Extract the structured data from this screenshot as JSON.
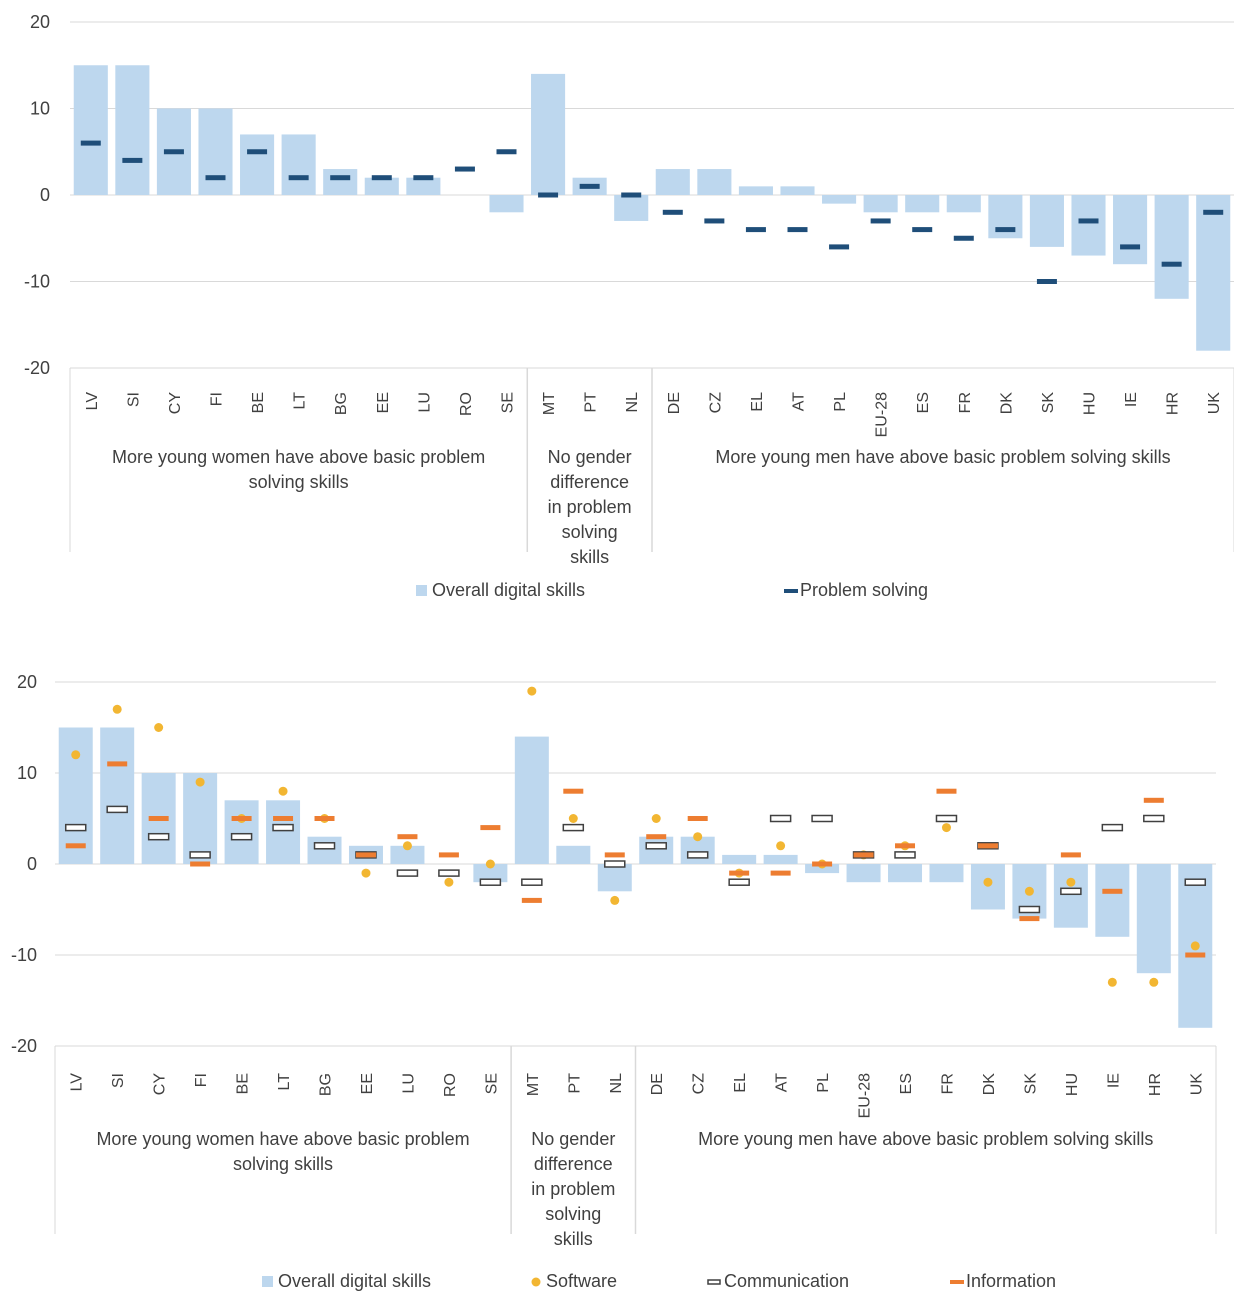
{
  "chart_data": [
    {
      "type": "bar",
      "categories": [
        "LV",
        "SI",
        "CY",
        "FI",
        "BE",
        "LT",
        "BG",
        "EE",
        "LU",
        "RO",
        "SE",
        "MT",
        "PT",
        "NL",
        "DE",
        "CZ",
        "EL",
        "AT",
        "PL",
        "EU-28",
        "ES",
        "FR",
        "DK",
        "SK",
        "HU",
        "IE",
        "HR",
        "UK"
      ],
      "series": [
        {
          "name": "Overall digital skills",
          "kind": "bar",
          "values": [
            15,
            15,
            10,
            10,
            7,
            7,
            3,
            2,
            2,
            0,
            -2,
            14,
            2,
            -3,
            3,
            3,
            1,
            1,
            -1,
            -2,
            -2,
            -2,
            -5,
            -6,
            -7,
            -8,
            -12,
            -18
          ]
        },
        {
          "name": "Problem solving",
          "kind": "dash",
          "values": [
            6,
            4,
            5,
            2,
            5,
            2,
            2,
            2,
            2,
            3,
            5,
            0,
            1,
            0,
            -2,
            -3,
            -4,
            -4,
            -6,
            -3,
            -4,
            -5,
            -4,
            -10,
            -3,
            -6,
            -8,
            -2
          ]
        }
      ],
      "ylim": [
        -20,
        20
      ],
      "yticks": [
        "20",
        "10",
        "0",
        "-10",
        "-20"
      ],
      "groups": [
        {
          "label": "More young women have above basic problem solving skills",
          "count": 11
        },
        {
          "label": "No gender difference in problem solving skills",
          "count": 3
        },
        {
          "label": "More young men have above basic problem solving skills",
          "count": 14
        }
      ],
      "grid": true,
      "legend": "bottom"
    },
    {
      "type": "bar",
      "categories": [
        "LV",
        "SI",
        "CY",
        "FI",
        "BE",
        "LT",
        "BG",
        "EE",
        "LU",
        "RO",
        "SE",
        "MT",
        "PT",
        "NL",
        "DE",
        "CZ",
        "EL",
        "AT",
        "PL",
        "EU-28",
        "ES",
        "FR",
        "DK",
        "SK",
        "HU",
        "IE",
        "HR",
        "UK"
      ],
      "series": [
        {
          "name": "Overall digital skills",
          "kind": "bar",
          "values": [
            15,
            15,
            10,
            10,
            7,
            7,
            3,
            2,
            2,
            0,
            -2,
            14,
            2,
            -3,
            3,
            3,
            1,
            1,
            -1,
            -2,
            -2,
            -2,
            -5,
            -6,
            -7,
            -8,
            -12,
            -18
          ]
        },
        {
          "name": "Software",
          "kind": "dot",
          "values": [
            12,
            17,
            15,
            9,
            5,
            8,
            5,
            -1,
            2,
            -2,
            0,
            19,
            5,
            -4,
            5,
            3,
            -1,
            2,
            0,
            1,
            2,
            4,
            -2,
            -3,
            -2,
            -13,
            -13,
            -9
          ]
        },
        {
          "name": "Communication",
          "kind": "hollow",
          "values": [
            4,
            6,
            3,
            1,
            3,
            4,
            2,
            1,
            -1,
            -1,
            -2,
            -2,
            4,
            0,
            2,
            1,
            -2,
            5,
            5,
            1,
            1,
            5,
            2,
            -5,
            -3,
            4,
            5,
            -2
          ]
        },
        {
          "name": "Information",
          "kind": "dash",
          "values": [
            2,
            11,
            5,
            0,
            5,
            5,
            5,
            1,
            3,
            1,
            4,
            -4,
            8,
            1,
            3,
            5,
            -1,
            -1,
            0,
            1,
            2,
            8,
            2,
            -6,
            1,
            -3,
            7,
            -10
          ]
        }
      ],
      "ylim": [
        -20,
        20
      ],
      "yticks": [
        "20",
        "10",
        "0",
        "-10",
        "-20"
      ],
      "groups": [
        {
          "label": "More young women have above basic problem solving skills",
          "count": 11
        },
        {
          "label": "No gender difference in problem solving skills",
          "count": 3
        },
        {
          "label": "More young men have above basic problem solving skills",
          "count": 14
        }
      ],
      "grid": true,
      "legend": "bottom"
    }
  ],
  "colors": {
    "bar": "#bdd7ee",
    "problem_solving": "#1f4e79",
    "software": "#f2b632",
    "communication": "#404040",
    "information": "#ed7d31",
    "grid": "#d9d9d9"
  }
}
